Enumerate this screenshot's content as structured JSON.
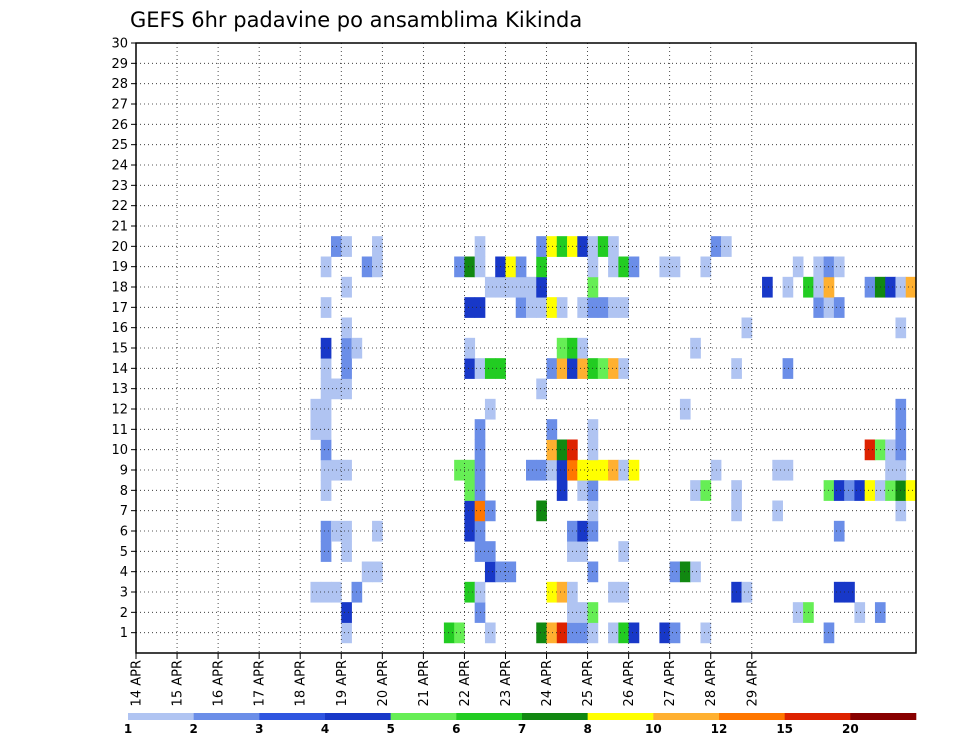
{
  "chart_data": {
    "type": "heatmap",
    "title": "GEFS 6hr padavine po ansamblima Kikinda",
    "y_ticks": [
      "1",
      "2",
      "3",
      "4",
      "5",
      "6",
      "7",
      "8",
      "9",
      "10",
      "11",
      "12",
      "13",
      "14",
      "15",
      "16",
      "17",
      "18",
      "19",
      "20",
      "21",
      "22",
      "23",
      "24",
      "25",
      "26",
      "27",
      "28",
      "29",
      "30"
    ],
    "x_ticks": [
      "14 APR",
      "15 APR",
      "16 APR",
      "17 APR",
      "18 APR",
      "19 APR",
      "20 APR",
      "21 APR",
      "22 APR",
      "23 APR",
      "24 APR",
      "25 APR",
      "26 APR",
      "27 APR",
      "28 APR",
      "29 APR"
    ],
    "ylim": [
      0,
      30
    ],
    "grid": true,
    "colorbar": {
      "labels": [
        "1",
        "2",
        "3",
        "4",
        "5",
        "6",
        "7",
        "8",
        "10",
        "12",
        "15",
        "20"
      ],
      "colors": [
        "#b0c4f2",
        "#6b8ee8",
        "#2f55e0",
        "#1838c8",
        "#66ee55",
        "#22cc22",
        "#118811",
        "#ffff00",
        "#ffb030",
        "#ff7700",
        "#dd2200",
        "#880000"
      ]
    },
    "cells": [
      {
        "m": 1,
        "t": 20,
        "c": "#b0c4f2"
      },
      {
        "m": 1,
        "t": 30,
        "c": "#22cc22"
      },
      {
        "m": 1,
        "t": 31,
        "c": "#66ee55"
      },
      {
        "m": 1,
        "t": 34,
        "c": "#b0c4f2"
      },
      {
        "m": 1,
        "t": 39,
        "c": "#118811"
      },
      {
        "m": 1,
        "t": 40,
        "c": "#ffb030"
      },
      {
        "m": 1,
        "t": 41,
        "c": "#dd2200"
      },
      {
        "m": 1,
        "t": 42,
        "c": "#6b8ee8"
      },
      {
        "m": 1,
        "t": 43,
        "c": "#6b8ee8"
      },
      {
        "m": 1,
        "t": 44,
        "c": "#b0c4f2"
      },
      {
        "m": 1,
        "t": 46,
        "c": "#b0c4f2"
      },
      {
        "m": 1,
        "t": 47,
        "c": "#22cc22"
      },
      {
        "m": 1,
        "t": 48,
        "c": "#1838c8"
      },
      {
        "m": 1,
        "t": 51,
        "c": "#1838c8"
      },
      {
        "m": 1,
        "t": 52,
        "c": "#6b8ee8"
      },
      {
        "m": 1,
        "t": 55,
        "c": "#b0c4f2"
      },
      {
        "m": 1,
        "t": 67,
        "c": "#6b8ee8"
      },
      {
        "m": 2,
        "t": 20,
        "c": "#1838c8"
      },
      {
        "m": 2,
        "t": 33,
        "c": "#6b8ee8"
      },
      {
        "m": 2,
        "t": 42,
        "c": "#b0c4f2"
      },
      {
        "m": 2,
        "t": 43,
        "c": "#b0c4f2"
      },
      {
        "m": 2,
        "t": 44,
        "c": "#66ee55"
      },
      {
        "m": 2,
        "t": 64,
        "c": "#b0c4f2"
      },
      {
        "m": 2,
        "t": 65,
        "c": "#66ee55"
      },
      {
        "m": 2,
        "t": 70,
        "c": "#b0c4f2"
      },
      {
        "m": 2,
        "t": 72,
        "c": "#6b8ee8"
      },
      {
        "m": 3,
        "t": 17,
        "c": "#b0c4f2"
      },
      {
        "m": 3,
        "t": 18,
        "c": "#b0c4f2"
      },
      {
        "m": 3,
        "t": 19,
        "c": "#b0c4f2"
      },
      {
        "m": 3,
        "t": 21,
        "c": "#6b8ee8"
      },
      {
        "m": 3,
        "t": 32,
        "c": "#22cc22"
      },
      {
        "m": 3,
        "t": 33,
        "c": "#b0c4f2"
      },
      {
        "m": 3,
        "t": 40,
        "c": "#ffff00"
      },
      {
        "m": 3,
        "t": 41,
        "c": "#ffb030"
      },
      {
        "m": 3,
        "t": 42,
        "c": "#b0c4f2"
      },
      {
        "m": 3,
        "t": 46,
        "c": "#b0c4f2"
      },
      {
        "m": 3,
        "t": 47,
        "c": "#b0c4f2"
      },
      {
        "m": 3,
        "t": 58,
        "c": "#1838c8"
      },
      {
        "m": 3,
        "t": 59,
        "c": "#b0c4f2"
      },
      {
        "m": 3,
        "t": 68,
        "c": "#1838c8"
      },
      {
        "m": 3,
        "t": 69,
        "c": "#1838c8"
      },
      {
        "m": 4,
        "t": 22,
        "c": "#b0c4f2"
      },
      {
        "m": 4,
        "t": 23,
        "c": "#b0c4f2"
      },
      {
        "m": 4,
        "t": 34,
        "c": "#1838c8"
      },
      {
        "m": 4,
        "t": 35,
        "c": "#6b8ee8"
      },
      {
        "m": 4,
        "t": 36,
        "c": "#6b8ee8"
      },
      {
        "m": 4,
        "t": 44,
        "c": "#6b8ee8"
      },
      {
        "m": 4,
        "t": 52,
        "c": "#6b8ee8"
      },
      {
        "m": 4,
        "t": 53,
        "c": "#118811"
      },
      {
        "m": 4,
        "t": 54,
        "c": "#b0c4f2"
      },
      {
        "m": 5,
        "t": 18,
        "c": "#6b8ee8"
      },
      {
        "m": 5,
        "t": 20,
        "c": "#b0c4f2"
      },
      {
        "m": 5,
        "t": 33,
        "c": "#6b8ee8"
      },
      {
        "m": 5,
        "t": 34,
        "c": "#6b8ee8"
      },
      {
        "m": 5,
        "t": 42,
        "c": "#b0c4f2"
      },
      {
        "m": 5,
        "t": 43,
        "c": "#b0c4f2"
      },
      {
        "m": 5,
        "t": 47,
        "c": "#b0c4f2"
      },
      {
        "m": 6,
        "t": 18,
        "c": "#6b8ee8"
      },
      {
        "m": 6,
        "t": 19,
        "c": "#b0c4f2"
      },
      {
        "m": 6,
        "t": 20,
        "c": "#b0c4f2"
      },
      {
        "m": 6,
        "t": 23,
        "c": "#b0c4f2"
      },
      {
        "m": 6,
        "t": 32,
        "c": "#1838c8"
      },
      {
        "m": 6,
        "t": 33,
        "c": "#6b8ee8"
      },
      {
        "m": 6,
        "t": 42,
        "c": "#6b8ee8"
      },
      {
        "m": 6,
        "t": 43,
        "c": "#1838c8"
      },
      {
        "m": 6,
        "t": 44,
        "c": "#6b8ee8"
      },
      {
        "m": 6,
        "t": 68,
        "c": "#6b8ee8"
      },
      {
        "m": 7,
        "t": 32,
        "c": "#1838c8"
      },
      {
        "m": 7,
        "t": 33,
        "c": "#ff7700"
      },
      {
        "m": 7,
        "t": 34,
        "c": "#6b8ee8"
      },
      {
        "m": 7,
        "t": 39,
        "c": "#118811"
      },
      {
        "m": 7,
        "t": 44,
        "c": "#b0c4f2"
      },
      {
        "m": 7,
        "t": 58,
        "c": "#b0c4f2"
      },
      {
        "m": 7,
        "t": 62,
        "c": "#b0c4f2"
      },
      {
        "m": 7,
        "t": 74,
        "c": "#b0c4f2"
      },
      {
        "m": 8,
        "t": 18,
        "c": "#b0c4f2"
      },
      {
        "m": 8,
        "t": 32,
        "c": "#66ee55"
      },
      {
        "m": 8,
        "t": 33,
        "c": "#6b8ee8"
      },
      {
        "m": 8,
        "t": 41,
        "c": "#1838c8"
      },
      {
        "m": 8,
        "t": 43,
        "c": "#b0c4f2"
      },
      {
        "m": 8,
        "t": 44,
        "c": "#6b8ee8"
      },
      {
        "m": 8,
        "t": 54,
        "c": "#b0c4f2"
      },
      {
        "m": 8,
        "t": 55,
        "c": "#66ee55"
      },
      {
        "m": 8,
        "t": 58,
        "c": "#b0c4f2"
      },
      {
        "m": 8,
        "t": 67,
        "c": "#66ee55"
      },
      {
        "m": 8,
        "t": 68,
        "c": "#1838c8"
      },
      {
        "m": 8,
        "t": 69,
        "c": "#6b8ee8"
      },
      {
        "m": 8,
        "t": 70,
        "c": "#1838c8"
      },
      {
        "m": 8,
        "t": 71,
        "c": "#ffff00"
      },
      {
        "m": 8,
        "t": 72,
        "c": "#b0c4f2"
      },
      {
        "m": 8,
        "t": 73,
        "c": "#66ee55"
      },
      {
        "m": 8,
        "t": 74,
        "c": "#118811"
      },
      {
        "m": 8,
        "t": 75,
        "c": "#ffff00"
      },
      {
        "m": 9,
        "t": 18,
        "c": "#b0c4f2"
      },
      {
        "m": 9,
        "t": 19,
        "c": "#b0c4f2"
      },
      {
        "m": 9,
        "t": 20,
        "c": "#b0c4f2"
      },
      {
        "m": 9,
        "t": 31,
        "c": "#66ee55"
      },
      {
        "m": 9,
        "t": 32,
        "c": "#66ee55"
      },
      {
        "m": 9,
        "t": 33,
        "c": "#6b8ee8"
      },
      {
        "m": 9,
        "t": 38,
        "c": "#6b8ee8"
      },
      {
        "m": 9,
        "t": 39,
        "c": "#6b8ee8"
      },
      {
        "m": 9,
        "t": 40,
        "c": "#b0c4f2"
      },
      {
        "m": 9,
        "t": 41,
        "c": "#1838c8"
      },
      {
        "m": 9,
        "t": 42,
        "c": "#ff7700"
      },
      {
        "m": 9,
        "t": 43,
        "c": "#ffff00"
      },
      {
        "m": 9,
        "t": 44,
        "c": "#ffff00"
      },
      {
        "m": 9,
        "t": 45,
        "c": "#ffff00"
      },
      {
        "m": 9,
        "t": 46,
        "c": "#ffb030"
      },
      {
        "m": 9,
        "t": 47,
        "c": "#b0c4f2"
      },
      {
        "m": 9,
        "t": 48,
        "c": "#ffff00"
      },
      {
        "m": 9,
        "t": 56,
        "c": "#b0c4f2"
      },
      {
        "m": 9,
        "t": 62,
        "c": "#b0c4f2"
      },
      {
        "m": 9,
        "t": 63,
        "c": "#b0c4f2"
      },
      {
        "m": 9,
        "t": 73,
        "c": "#b0c4f2"
      },
      {
        "m": 9,
        "t": 74,
        "c": "#b0c4f2"
      },
      {
        "m": 10,
        "t": 18,
        "c": "#6b8ee8"
      },
      {
        "m": 10,
        "t": 33,
        "c": "#6b8ee8"
      },
      {
        "m": 10,
        "t": 40,
        "c": "#ffb030"
      },
      {
        "m": 10,
        "t": 41,
        "c": "#118811"
      },
      {
        "m": 10,
        "t": 42,
        "c": "#dd2200"
      },
      {
        "m": 10,
        "t": 44,
        "c": "#b0c4f2"
      },
      {
        "m": 10,
        "t": 71,
        "c": "#dd2200"
      },
      {
        "m": 10,
        "t": 72,
        "c": "#66ee55"
      },
      {
        "m": 10,
        "t": 73,
        "c": "#b0c4f2"
      },
      {
        "m": 10,
        "t": 74,
        "c": "#6b8ee8"
      },
      {
        "m": 11,
        "t": 17,
        "c": "#b0c4f2"
      },
      {
        "m": 11,
        "t": 18,
        "c": "#b0c4f2"
      },
      {
        "m": 11,
        "t": 33,
        "c": "#6b8ee8"
      },
      {
        "m": 11,
        "t": 40,
        "c": "#6b8ee8"
      },
      {
        "m": 11,
        "t": 44,
        "c": "#b0c4f2"
      },
      {
        "m": 11,
        "t": 74,
        "c": "#6b8ee8"
      },
      {
        "m": 12,
        "t": 17,
        "c": "#b0c4f2"
      },
      {
        "m": 12,
        "t": 18,
        "c": "#b0c4f2"
      },
      {
        "m": 12,
        "t": 34,
        "c": "#b0c4f2"
      },
      {
        "m": 12,
        "t": 53,
        "c": "#b0c4f2"
      },
      {
        "m": 12,
        "t": 74,
        "c": "#6b8ee8"
      },
      {
        "m": 13,
        "t": 18,
        "c": "#b0c4f2"
      },
      {
        "m": 13,
        "t": 19,
        "c": "#b0c4f2"
      },
      {
        "m": 13,
        "t": 20,
        "c": "#b0c4f2"
      },
      {
        "m": 13,
        "t": 39,
        "c": "#b0c4f2"
      },
      {
        "m": 14,
        "t": 18,
        "c": "#b0c4f2"
      },
      {
        "m": 14,
        "t": 20,
        "c": "#6b8ee8"
      },
      {
        "m": 14,
        "t": 32,
        "c": "#1838c8"
      },
      {
        "m": 14,
        "t": 33,
        "c": "#b0c4f2"
      },
      {
        "m": 14,
        "t": 34,
        "c": "#22cc22"
      },
      {
        "m": 14,
        "t": 35,
        "c": "#22cc22"
      },
      {
        "m": 14,
        "t": 40,
        "c": "#6b8ee8"
      },
      {
        "m": 14,
        "t": 41,
        "c": "#ffb030"
      },
      {
        "m": 14,
        "t": 42,
        "c": "#1838c8"
      },
      {
        "m": 14,
        "t": 43,
        "c": "#ffb030"
      },
      {
        "m": 14,
        "t": 44,
        "c": "#22cc22"
      },
      {
        "m": 14,
        "t": 45,
        "c": "#66ee55"
      },
      {
        "m": 14,
        "t": 46,
        "c": "#ffb030"
      },
      {
        "m": 14,
        "t": 47,
        "c": "#b0c4f2"
      },
      {
        "m": 14,
        "t": 58,
        "c": "#b0c4f2"
      },
      {
        "m": 14,
        "t": 63,
        "c": "#6b8ee8"
      },
      {
        "m": 15,
        "t": 18,
        "c": "#1838c8"
      },
      {
        "m": 15,
        "t": 20,
        "c": "#6b8ee8"
      },
      {
        "m": 15,
        "t": 21,
        "c": "#b0c4f2"
      },
      {
        "m": 15,
        "t": 32,
        "c": "#b0c4f2"
      },
      {
        "m": 15,
        "t": 41,
        "c": "#66ee55"
      },
      {
        "m": 15,
        "t": 42,
        "c": "#22cc22"
      },
      {
        "m": 15,
        "t": 43,
        "c": "#b0c4f2"
      },
      {
        "m": 15,
        "t": 54,
        "c": "#b0c4f2"
      },
      {
        "m": 16,
        "t": 20,
        "c": "#b0c4f2"
      },
      {
        "m": 16,
        "t": 59,
        "c": "#b0c4f2"
      },
      {
        "m": 16,
        "t": 74,
        "c": "#b0c4f2"
      },
      {
        "m": 17,
        "t": 18,
        "c": "#b0c4f2"
      },
      {
        "m": 17,
        "t": 32,
        "c": "#1838c8"
      },
      {
        "m": 17,
        "t": 33,
        "c": "#1838c8"
      },
      {
        "m": 17,
        "t": 37,
        "c": "#6b8ee8"
      },
      {
        "m": 17,
        "t": 38,
        "c": "#b0c4f2"
      },
      {
        "m": 17,
        "t": 39,
        "c": "#b0c4f2"
      },
      {
        "m": 17,
        "t": 40,
        "c": "#ffff00"
      },
      {
        "m": 17,
        "t": 41,
        "c": "#b0c4f2"
      },
      {
        "m": 17,
        "t": 43,
        "c": "#b0c4f2"
      },
      {
        "m": 17,
        "t": 44,
        "c": "#6b8ee8"
      },
      {
        "m": 17,
        "t": 45,
        "c": "#6b8ee8"
      },
      {
        "m": 17,
        "t": 46,
        "c": "#b0c4f2"
      },
      {
        "m": 17,
        "t": 47,
        "c": "#b0c4f2"
      },
      {
        "m": 17,
        "t": 66,
        "c": "#6b8ee8"
      },
      {
        "m": 17,
        "t": 67,
        "c": "#b0c4f2"
      },
      {
        "m": 17,
        "t": 68,
        "c": "#6b8ee8"
      },
      {
        "m": 18,
        "t": 20,
        "c": "#b0c4f2"
      },
      {
        "m": 18,
        "t": 34,
        "c": "#b0c4f2"
      },
      {
        "m": 18,
        "t": 35,
        "c": "#b0c4f2"
      },
      {
        "m": 18,
        "t": 36,
        "c": "#b0c4f2"
      },
      {
        "m": 18,
        "t": 37,
        "c": "#b0c4f2"
      },
      {
        "m": 18,
        "t": 38,
        "c": "#b0c4f2"
      },
      {
        "m": 18,
        "t": 39,
        "c": "#1838c8"
      },
      {
        "m": 18,
        "t": 44,
        "c": "#66ee55"
      },
      {
        "m": 18,
        "t": 61,
        "c": "#1838c8"
      },
      {
        "m": 18,
        "t": 63,
        "c": "#b0c4f2"
      },
      {
        "m": 18,
        "t": 65,
        "c": "#22cc22"
      },
      {
        "m": 18,
        "t": 66,
        "c": "#b0c4f2"
      },
      {
        "m": 18,
        "t": 67,
        "c": "#ffb030"
      },
      {
        "m": 18,
        "t": 71,
        "c": "#6b8ee8"
      },
      {
        "m": 18,
        "t": 72,
        "c": "#118811"
      },
      {
        "m": 18,
        "t": 73,
        "c": "#1838c8"
      },
      {
        "m": 18,
        "t": 74,
        "c": "#b0c4f2"
      },
      {
        "m": 18,
        "t": 75,
        "c": "#ffb030"
      },
      {
        "m": 19,
        "t": 18,
        "c": "#b0c4f2"
      },
      {
        "m": 19,
        "t": 22,
        "c": "#6b8ee8"
      },
      {
        "m": 19,
        "t": 23,
        "c": "#b0c4f2"
      },
      {
        "m": 19,
        "t": 31,
        "c": "#6b8ee8"
      },
      {
        "m": 19,
        "t": 32,
        "c": "#118811"
      },
      {
        "m": 19,
        "t": 33,
        "c": "#b0c4f2"
      },
      {
        "m": 19,
        "t": 35,
        "c": "#1838c8"
      },
      {
        "m": 19,
        "t": 36,
        "c": "#ffff00"
      },
      {
        "m": 19,
        "t": 37,
        "c": "#6b8ee8"
      },
      {
        "m": 19,
        "t": 39,
        "c": "#22cc22"
      },
      {
        "m": 19,
        "t": 44,
        "c": "#b0c4f2"
      },
      {
        "m": 19,
        "t": 46,
        "c": "#b0c4f2"
      },
      {
        "m": 19,
        "t": 47,
        "c": "#22cc22"
      },
      {
        "m": 19,
        "t": 48,
        "c": "#6b8ee8"
      },
      {
        "m": 19,
        "t": 51,
        "c": "#b0c4f2"
      },
      {
        "m": 19,
        "t": 52,
        "c": "#b0c4f2"
      },
      {
        "m": 19,
        "t": 55,
        "c": "#b0c4f2"
      },
      {
        "m": 19,
        "t": 64,
        "c": "#b0c4f2"
      },
      {
        "m": 19,
        "t": 66,
        "c": "#b0c4f2"
      },
      {
        "m": 19,
        "t": 67,
        "c": "#6b8ee8"
      },
      {
        "m": 19,
        "t": 68,
        "c": "#b0c4f2"
      },
      {
        "m": 20,
        "t": 19,
        "c": "#6b8ee8"
      },
      {
        "m": 20,
        "t": 20,
        "c": "#b0c4f2"
      },
      {
        "m": 20,
        "t": 23,
        "c": "#b0c4f2"
      },
      {
        "m": 20,
        "t": 33,
        "c": "#b0c4f2"
      },
      {
        "m": 20,
        "t": 39,
        "c": "#6b8ee8"
      },
      {
        "m": 20,
        "t": 40,
        "c": "#ffff00"
      },
      {
        "m": 20,
        "t": 41,
        "c": "#22cc22"
      },
      {
        "m": 20,
        "t": 42,
        "c": "#ffff00"
      },
      {
        "m": 20,
        "t": 43,
        "c": "#1838c8"
      },
      {
        "m": 20,
        "t": 44,
        "c": "#b0c4f2"
      },
      {
        "m": 20,
        "t": 45,
        "c": "#22cc22"
      },
      {
        "m": 20,
        "t": 46,
        "c": "#b0c4f2"
      },
      {
        "m": 20,
        "t": 56,
        "c": "#6b8ee8"
      },
      {
        "m": 20,
        "t": 57,
        "c": "#b0c4f2"
      }
    ]
  }
}
